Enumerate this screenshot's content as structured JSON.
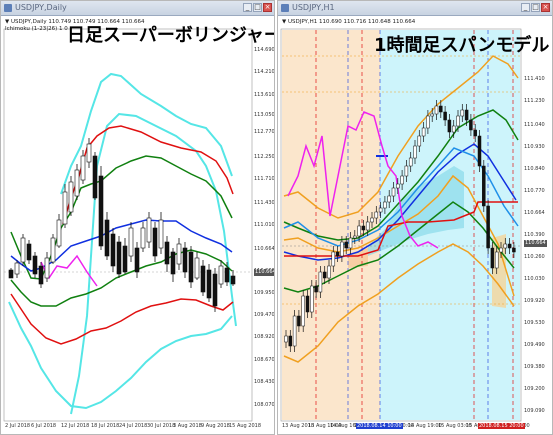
{
  "windows": [
    {
      "title": "USDJPY,Daily",
      "info_line1": "▼ USDJPY,Daily  110.749 110.749 110.664 110.664",
      "info_line2": "Ichimoku (1-23|26) 1  0",
      "overlay": "日足スーパーボリンジャー",
      "yticks": [
        "114.690",
        "114.210",
        "113.610",
        "113.050",
        "112.770",
        "112.250",
        "111.710",
        "111.430",
        "111.010",
        "110.664",
        "110.230",
        "109.950",
        "109.470",
        "108.920",
        "108.670",
        "108.430",
        "108.070"
      ],
      "xticks": [
        "2 Jul 2018",
        "6 Jul 2018",
        "12 Jul 2018",
        "18 Jul 2018",
        "24 Jul 2018",
        "30 Jul 2018",
        "3 Aug 2018",
        "9 Aug 2018",
        "15 Aug 2018"
      ],
      "price_label": "110.664"
    },
    {
      "title": "USDJPY,H1",
      "info_line1": "▼ USDJPY,H1  110.690 110.716 110.648 110.664",
      "overlay": "1時間足スパンモデル",
      "yticks": [
        "111.410",
        "111.230",
        "111.040",
        "110.930",
        "110.840",
        "110.770",
        "110.664",
        "110.390",
        "110.260",
        "110.030",
        "109.920",
        "109.530",
        "109.490",
        "109.380",
        "109.200",
        "109.090"
      ],
      "xticks": [
        "13 Aug 2018",
        "13 Aug 10:00",
        "14 Aug 16:00",
        "15 Aug 18:00",
        "14 Aug 10:00",
        "14 Aug 19:00",
        "15 Aug 03:00",
        "15 Aug 11:00",
        "15 Aug 19:00"
      ],
      "highlight_xtick": "2018.08.14 10:00",
      "highlight_xtick_red": "2018.08.15 20:00",
      "price_label": "110.664"
    }
  ],
  "colors": {
    "bg": "#ffffff",
    "cyan_band": "#55e6e6",
    "red_band": "#e01010",
    "green_band": "#108010",
    "blue_mid": "#1030e0",
    "magenta": "#ee22ee",
    "orange": "#f0a020",
    "shade_peach": "#fbe6cc",
    "shade_cyan": "#cdf4fb"
  },
  "icons": {
    "window_icon": "chart-window-icon",
    "minimize": "minimize-icon",
    "maximize": "maximize-icon",
    "close": "close-icon"
  }
}
